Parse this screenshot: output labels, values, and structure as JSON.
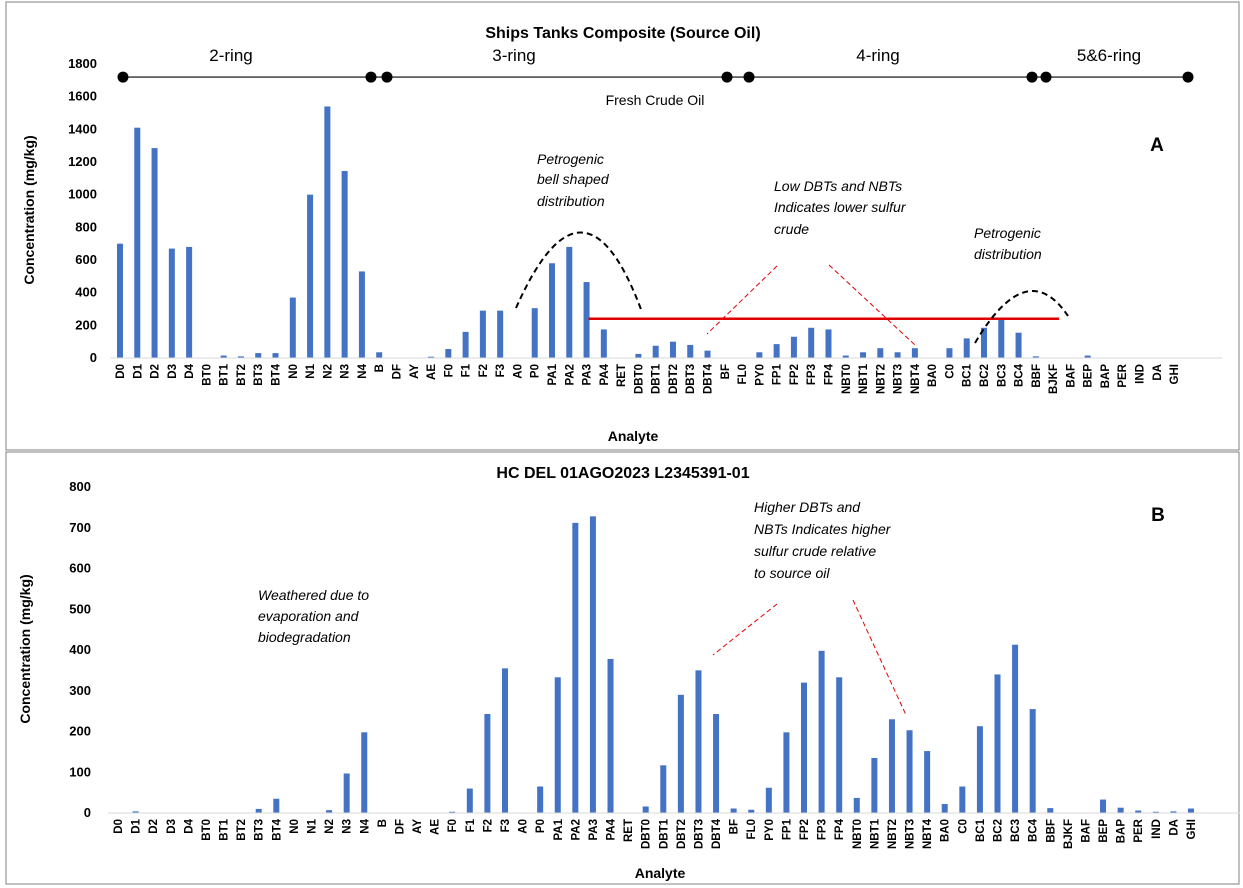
{
  "colors": {
    "bar": "#4472C4",
    "ref_line": "#E00000",
    "annotation_dash": "#E00000",
    "curve": "#000000",
    "border": "#808080"
  },
  "x_labels": [
    "D0",
    "D1",
    "D2",
    "D3",
    "D4",
    "BT0",
    "BT1",
    "BT2",
    "BT3",
    "BT4",
    "N0",
    "N1",
    "N2",
    "N3",
    "N4",
    "B",
    "DF",
    "AY",
    "AE",
    "F0",
    "F1",
    "F2",
    "F3",
    "A0",
    "P0",
    "PA1",
    "PA2",
    "PA3",
    "PA4",
    "RET",
    "DBT0",
    "DBT1",
    "DBT2",
    "DBT3",
    "DBT4",
    "BF",
    "FL0",
    "PY0",
    "FP1",
    "FP2",
    "FP3",
    "FP4",
    "NBT0",
    "NBT1",
    "NBT2",
    "NBT3",
    "NBT4",
    "BA0",
    "C0",
    "BC1",
    "BC2",
    "BC3",
    "BC4",
    "BBF",
    "BJKF",
    "BAF",
    "BEP",
    "BAP",
    "PER",
    "IND",
    "DA",
    "GHI"
  ],
  "chart_data": [
    {
      "type": "bar",
      "panel_label": "A",
      "title": "Ships Tanks Composite (Source Oil)",
      "xlabel": "Analyte",
      "ylabel": "Concentration (mg/kg)",
      "ylim": [
        0,
        1800
      ],
      "yticks": [
        0,
        200,
        400,
        600,
        800,
        1000,
        1200,
        1400,
        1600,
        1800
      ],
      "grid": false,
      "values": [
        700,
        1410,
        1285,
        670,
        680,
        0,
        15,
        10,
        30,
        30,
        370,
        1000,
        1540,
        1145,
        530,
        35,
        0,
        0,
        8,
        55,
        160,
        290,
        290,
        0,
        305,
        580,
        680,
        465,
        175,
        0,
        25,
        75,
        100,
        80,
        45,
        0,
        0,
        35,
        85,
        130,
        185,
        175,
        15,
        35,
        60,
        35,
        60,
        0,
        60,
        120,
        185,
        240,
        155,
        10,
        0,
        0,
        15,
        0,
        0,
        0,
        0,
        0
      ],
      "reference_line": {
        "value": 240,
        "from": "PA3",
        "to": "BJKF"
      },
      "ring_bands": [
        {
          "label": "2-ring",
          "from": "D0",
          "to": "N4"
        },
        {
          "label": "3-ring",
          "from": "B",
          "to": "DBT4"
        },
        {
          "label": "4-ring",
          "from": "BF",
          "to": "BC3"
        },
        {
          "label": "5&6-ring",
          "from": "BC4",
          "to": "GHI"
        }
      ],
      "ring_band_value": 1720,
      "fresh_label": "Fresh Crude Oil",
      "annotations": [
        "Petrogenic",
        "bell shaped",
        "distribution",
        "Low DBTs and NBTs",
        "Indicates lower sulfur",
        "crude",
        "Petrogenic",
        "distribution"
      ]
    },
    {
      "type": "bar",
      "panel_label": "B",
      "title": "HC DEL 01AGO2023 L2345391-01",
      "xlabel": "Analyte",
      "ylabel": "Concentration (mg/kg)",
      "ylim": [
        0,
        800
      ],
      "yticks": [
        0,
        100,
        200,
        300,
        400,
        500,
        600,
        700,
        800
      ],
      "grid": false,
      "values": [
        0,
        4,
        0,
        0,
        0,
        0,
        0,
        0,
        10,
        35,
        0,
        0,
        7,
        97,
        198,
        0,
        0,
        0,
        0,
        3,
        60,
        243,
        355,
        0,
        65,
        333,
        712,
        728,
        378,
        0,
        16,
        117,
        290,
        350,
        243,
        11,
        8,
        62,
        198,
        320,
        398,
        333,
        37,
        135,
        230,
        203,
        152,
        22,
        65,
        213,
        340,
        413,
        255,
        12,
        0,
        0,
        33,
        13,
        6,
        3,
        4,
        11
      ],
      "annotations": [
        "Weathered due to",
        "evaporation and",
        "biodegradation",
        "Higher DBTs and",
        "NBTs Indicates higher",
        "sulfur crude relative",
        "to source oil"
      ]
    }
  ]
}
